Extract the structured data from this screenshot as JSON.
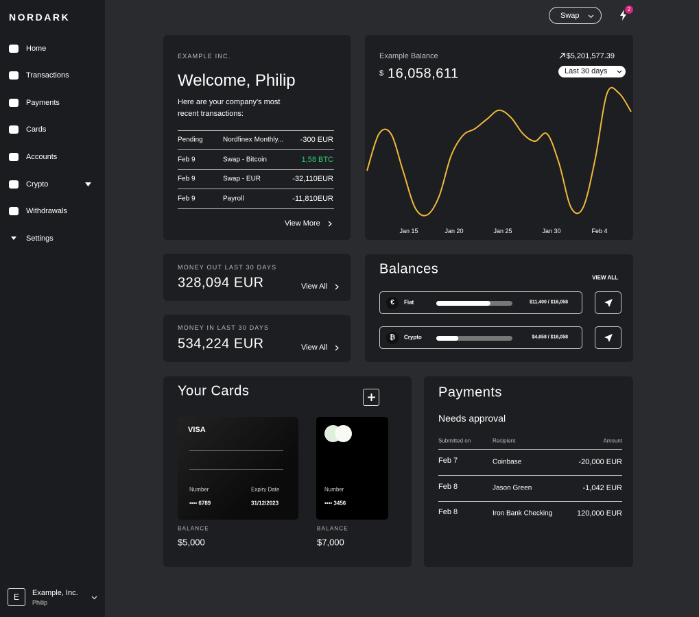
{
  "brand": "NORDARK",
  "sidebar": {
    "nav": [
      "Home",
      "Transactions",
      "Payments",
      "Cards",
      "Accounts",
      "Crypto",
      "Withdrawals",
      "Settings"
    ],
    "user": {
      "initial": "E",
      "company": "Example, Inc.",
      "name": "Philip"
    }
  },
  "topbar": {
    "swap": "Swap",
    "notifications": 2
  },
  "welcome": {
    "company": "EXAMPLE INC.",
    "title": "Welcome, Philip",
    "subtitle": "Here are your company's most recent transactions:",
    "transactions": [
      {
        "date": "Pending",
        "description": "Nordfinex Monthly...",
        "amount": "-300 EUR"
      },
      {
        "date": "Feb 9",
        "description": "Swap - Bitcoin",
        "amount": "1,58 BTC",
        "color": "#2ecc71"
      },
      {
        "date": "Feb 9",
        "description": "Swap - EUR",
        "amount": "-32,110EUR"
      },
      {
        "date": "Feb 9",
        "description": "Payroll",
        "amount": "-11,810EUR"
      }
    ],
    "view_more": "View More"
  },
  "balance": {
    "label": "Example Balance",
    "currency": "$",
    "amount": "16,058,611",
    "change": "$5,201,577.39",
    "period": "Last 30 days",
    "chart": {
      "color": "#f0b93a",
      "x_labels": [
        "Jan 15",
        "Jan 20",
        "Jan 25",
        "Jan 30",
        "Feb 4"
      ],
      "values": [
        65,
        115,
        115,
        65,
        15,
        5,
        30,
        85,
        113,
        122,
        135,
        147,
        137,
        115,
        105,
        115,
        75,
        15,
        15,
        80,
        170,
        170,
        145
      ]
    }
  },
  "money_out": {
    "label": "MONEY OUT LAST 30 DAYS",
    "amount": "328,094 EUR",
    "link": "View All"
  },
  "money_in": {
    "label": "MONEY IN LAST 30 DAYS",
    "amount": "534,224 EUR",
    "link": "View All"
  },
  "balances": {
    "title": "Balances",
    "view_all": "VIEW ALL",
    "items": [
      {
        "symbol": "€",
        "name": "Fiat",
        "value": 11400,
        "total": 16058,
        "label": "$11,400 / $16,058"
      },
      {
        "symbol": "₿",
        "name": "Crypto",
        "value": 4658,
        "total": 16058,
        "label": "$4,658 / $16,058"
      }
    ]
  },
  "cards": {
    "title": "Your Cards",
    "items": [
      {
        "brand": "VISA",
        "number_label": "Number",
        "number": "•••• 6789",
        "expiry_label": "Expiry Date",
        "expiry": "31/12/2023",
        "balance_label": "BALANCE",
        "balance": "$5,000"
      },
      {
        "number_label": "Number",
        "number": "•••• 3456",
        "balance_label": "BALANCE",
        "balance": "$7,000"
      }
    ]
  },
  "payments": {
    "title": "Payments",
    "subtitle": "Needs approval",
    "columns": [
      "Submitted on",
      "Recipient",
      "Amount"
    ],
    "rows": [
      [
        "Feb 7",
        "Coinbase",
        "-20,000 EUR"
      ],
      [
        "Feb 8",
        "Jason Green",
        "-1,042 EUR"
      ],
      [
        "Feb 8",
        "Iron Bank Checking",
        "120,000 EUR"
      ]
    ]
  }
}
